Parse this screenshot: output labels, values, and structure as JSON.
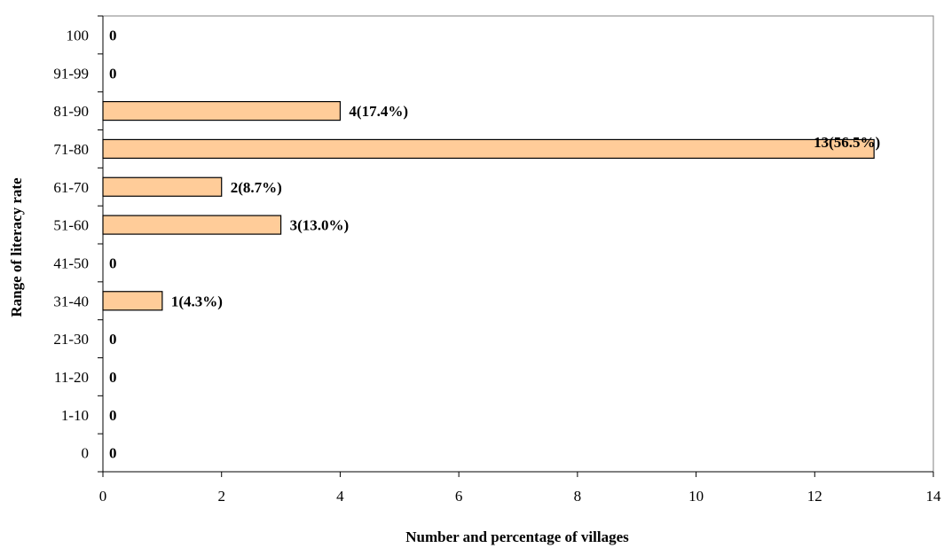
{
  "chart_data": {
    "type": "bar",
    "orientation": "horizontal",
    "title": "",
    "xlabel": "Number and percentage of villages",
    "ylabel": "Range of literacy rate",
    "categories": [
      "0",
      "1-10",
      "11-20",
      "21-30",
      "31-40",
      "41-50",
      "51-60",
      "61-70",
      "71-80",
      "81-90",
      "91-99",
      "100"
    ],
    "values": [
      0,
      0,
      0,
      0,
      1,
      0,
      3,
      2,
      13,
      4,
      0,
      0
    ],
    "data_labels": [
      "0",
      "0",
      "0",
      "0",
      "1(4.3%)",
      "0",
      "3(13.0%)",
      "2(8.7%)",
      "13(56.5%)",
      "4(17.4%)",
      "0",
      "0"
    ],
    "xlim": [
      0,
      14
    ],
    "xticks": [
      "0",
      "2",
      "4",
      "6",
      "8",
      "10",
      "12",
      "14"
    ],
    "grid": false,
    "legend": "none",
    "bar_color": "#FFCC99",
    "bar_stroke": "#000000"
  }
}
